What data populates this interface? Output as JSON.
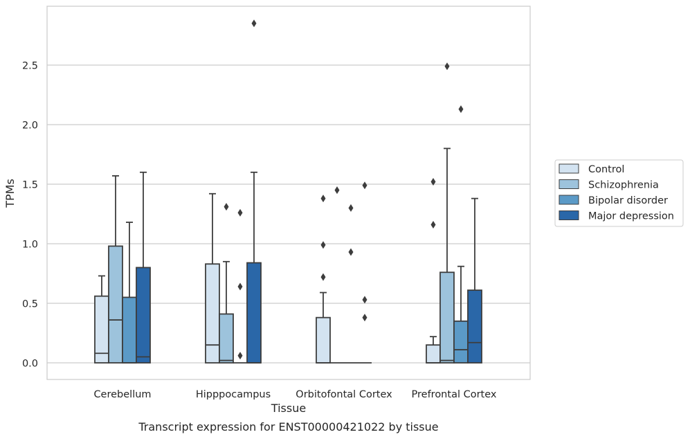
{
  "chart_data": {
    "type": "box",
    "xlabel": "Tissue",
    "ylabel": "TPMs",
    "caption": "Transcript expression for ENST00000421022 by tissue",
    "ylim": [
      -0.14,
      2.9
    ],
    "yticks": [
      "0.0",
      "0.5",
      "1.0",
      "1.5",
      "2.0",
      "2.5"
    ],
    "grid": "horizontal",
    "legend_position": "right",
    "categories": [
      "Cerebellum",
      "Hipppocampus",
      "Orbitofontal Cortex",
      "Prefrontal Cortex"
    ],
    "series": [
      {
        "name": "Control",
        "color": "#d3e3f1",
        "boxes": [
          {
            "whislo": 0.0,
            "q1": 0.0,
            "med": 0.08,
            "q3": 0.56,
            "whishi": 0.73,
            "fliers": []
          },
          {
            "whislo": 0.0,
            "q1": 0.0,
            "med": 0.15,
            "q3": 0.83,
            "whishi": 1.42,
            "fliers": []
          },
          {
            "whislo": 0.0,
            "q1": 0.0,
            "med": 0.0,
            "q3": 0.38,
            "whishi": 0.59,
            "fliers": [
              0.72,
              0.99,
              1.38
            ]
          },
          {
            "whislo": 0.0,
            "q1": 0.0,
            "med": 0.0,
            "q3": 0.15,
            "whishi": 0.22,
            "fliers": [
              1.16,
              1.52
            ]
          }
        ]
      },
      {
        "name": "Schizophrenia",
        "color": "#9dc3dc",
        "boxes": [
          {
            "whislo": 0.0,
            "q1": 0.0,
            "med": 0.36,
            "q3": 0.98,
            "whishi": 1.57,
            "fliers": []
          },
          {
            "whislo": 0.0,
            "q1": 0.0,
            "med": 0.02,
            "q3": 0.41,
            "whishi": 0.85,
            "fliers": [
              1.31
            ]
          },
          {
            "whislo": 0.0,
            "q1": 0.0,
            "med": 0.0,
            "q3": 0.0,
            "whishi": 0.0,
            "fliers": [
              1.45
            ]
          },
          {
            "whislo": 0.0,
            "q1": 0.0,
            "med": 0.02,
            "q3": 0.76,
            "whishi": 1.8,
            "fliers": [
              2.49
            ]
          }
        ]
      },
      {
        "name": "Bipolar disorder",
        "color": "#5b9ac7",
        "boxes": [
          {
            "whislo": 0.0,
            "q1": 0.0,
            "med": 0.0,
            "q3": 0.55,
            "whishi": 1.18,
            "fliers": []
          },
          {
            "whislo": 0.0,
            "q1": 0.0,
            "med": 0.0,
            "q3": 0.0,
            "whishi": 0.0,
            "fliers": [
              0.06,
              0.64,
              1.26
            ]
          },
          {
            "whislo": 0.0,
            "q1": 0.0,
            "med": 0.0,
            "q3": 0.0,
            "whishi": 0.0,
            "fliers": [
              0.93,
              1.3
            ]
          },
          {
            "whislo": 0.0,
            "q1": 0.0,
            "med": 0.11,
            "q3": 0.35,
            "whishi": 0.81,
            "fliers": [
              2.13
            ]
          }
        ]
      },
      {
        "name": "Major depression",
        "color": "#2a67a8",
        "boxes": [
          {
            "whislo": 0.0,
            "q1": 0.0,
            "med": 0.05,
            "q3": 0.8,
            "whishi": 1.6,
            "fliers": []
          },
          {
            "whislo": 0.0,
            "q1": 0.0,
            "med": 0.0,
            "q3": 0.84,
            "whishi": 1.6,
            "fliers": [
              2.85
            ]
          },
          {
            "whislo": 0.0,
            "q1": 0.0,
            "med": 0.0,
            "q3": 0.0,
            "whishi": 0.0,
            "fliers": [
              0.38,
              0.53,
              1.49
            ]
          },
          {
            "whislo": 0.0,
            "q1": 0.0,
            "med": 0.17,
            "q3": 0.61,
            "whishi": 1.38,
            "fliers": []
          }
        ]
      }
    ]
  }
}
